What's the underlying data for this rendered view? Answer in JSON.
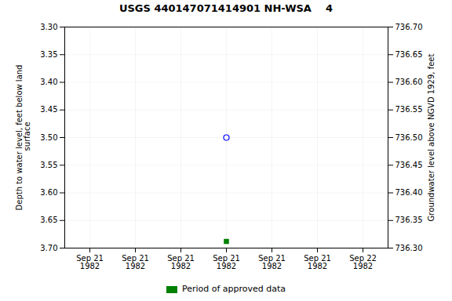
{
  "chart_data": {
    "type": "scatter",
    "title": "USGS 440147071414901 NH-WSA    4",
    "ylabel": "Depth to water level, feet below land\n surface",
    "y2label": "Groundwater level above NGVD 1929, feet",
    "categories": [
      "Sep 21\n1982",
      "Sep 21\n1982",
      "Sep 21\n1982",
      "Sep 21\n1982",
      "Sep 21\n1982",
      "Sep 21\n1982",
      "Sep 22\n1982"
    ],
    "series": [
      {
        "color": "blue",
        "marker": "circle",
        "values": [
          null,
          null,
          null,
          3.5,
          null,
          null,
          null
        ]
      },
      {
        "name": "Period of approved data",
        "color": "#008000",
        "marker": "square",
        "values": [
          null,
          null,
          null,
          3.688,
          null,
          null,
          null
        ]
      }
    ],
    "ylim": [
      3.7,
      3.3
    ],
    "yticks": [
      {
        "value": 3.3,
        "label": "3.30"
      },
      {
        "value": 3.35,
        "label": "3.35"
      },
      {
        "value": 3.4,
        "label": "3.40"
      },
      {
        "value": 3.45,
        "label": "3.45"
      },
      {
        "value": 3.5,
        "label": "3.50"
      },
      {
        "value": 3.55,
        "label": "3.55"
      },
      {
        "value": 3.6,
        "label": "3.60"
      },
      {
        "value": 3.65,
        "label": "3.65"
      },
      {
        "value": 3.7,
        "label": "3.70"
      }
    ],
    "y2lim": [
      736.3,
      736.7
    ],
    "y2ticks": [
      {
        "value": 736.7,
        "label": "736.70"
      },
      {
        "value": 736.65,
        "label": "736.65"
      },
      {
        "value": 736.6,
        "label": "736.60"
      },
      {
        "value": 736.55,
        "label": "736.55"
      },
      {
        "value": 736.5,
        "label": "736.50"
      },
      {
        "value": 736.45,
        "label": "736.45"
      },
      {
        "value": 736.4,
        "label": "736.40"
      },
      {
        "value": 736.35,
        "label": "736.35"
      },
      {
        "value": 736.3,
        "label": "736.30"
      }
    ],
    "grid": true,
    "legend": "bottom"
  }
}
